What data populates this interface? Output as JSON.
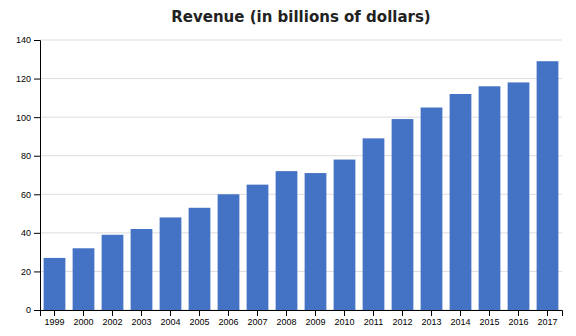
{
  "chart_data": {
    "type": "bar",
    "title": "Revenue (in billions of dollars)",
    "categories": [
      "1999",
      "2000",
      "2002",
      "2003",
      "2004",
      "2005",
      "2006",
      "2007",
      "2008",
      "2009",
      "2010",
      "2011",
      "2012",
      "2013",
      "2014",
      "2015",
      "2016",
      "2017"
    ],
    "values": [
      27,
      32,
      39,
      42,
      48,
      53,
      60,
      65,
      72,
      71,
      78,
      89,
      99,
      105,
      112,
      116,
      118,
      129
    ],
    "color": "#4472C4",
    "ylim": [
      0,
      140
    ],
    "yticks": [
      0,
      20,
      40,
      60,
      80,
      100,
      120,
      140
    ],
    "grid": true
  }
}
